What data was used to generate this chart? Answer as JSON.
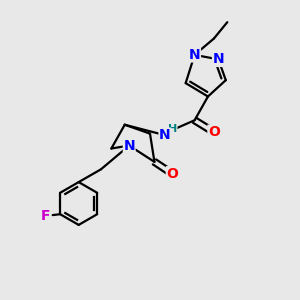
{
  "bg_color": "#e8e8e8",
  "bond_color": "#000000",
  "bond_width": 1.6,
  "atom_colors": {
    "N": "#0000ff",
    "O": "#ff0000",
    "F": "#cc00cc",
    "C": "#000000",
    "H": "#008080"
  },
  "font_size": 9,
  "fig_size": [
    3.0,
    3.0
  ],
  "dpi": 100
}
